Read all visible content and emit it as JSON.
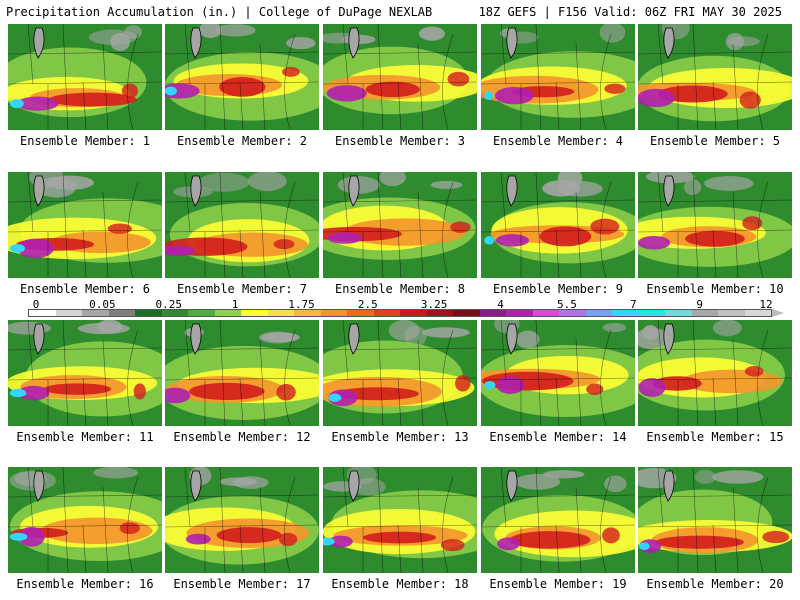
{
  "header": {
    "title_left": "Precipitation Accumulation (in.) | College of DuPage NEXLAB",
    "title_right": "18Z GEFS | F156 Valid: 06Z FRI MAY 30 2025"
  },
  "panel_label_prefix": "Ensemble Member: ",
  "panels": [
    {
      "label": "Ensemble Member: 1"
    },
    {
      "label": "Ensemble Member: 2"
    },
    {
      "label": "Ensemble Member: 3"
    },
    {
      "label": "Ensemble Member: 4"
    },
    {
      "label": "Ensemble Member: 5"
    },
    {
      "label": "Ensemble Member: 6"
    },
    {
      "label": "Ensemble Member: 7"
    },
    {
      "label": "Ensemble Member: 8"
    },
    {
      "label": "Ensemble Member: 9"
    },
    {
      "label": "Ensemble Member: 10"
    },
    {
      "label": "Ensemble Member: 11"
    },
    {
      "label": "Ensemble Member: 12"
    },
    {
      "label": "Ensemble Member: 13"
    },
    {
      "label": "Ensemble Member: 14"
    },
    {
      "label": "Ensemble Member: 15"
    },
    {
      "label": "Ensemble Member: 16"
    },
    {
      "label": "Ensemble Member: 17"
    },
    {
      "label": "Ensemble Member: 18"
    },
    {
      "label": "Ensemble Member: 19"
    },
    {
      "label": "Ensemble Member: 20"
    }
  ],
  "colorbar": {
    "tick_labels": [
      "0",
      "0.05",
      "0.25",
      "1",
      "1.75",
      "2.5",
      "3.25",
      "4",
      "5.5",
      "7",
      "9",
      "12"
    ],
    "colors": [
      "#ffffff",
      "#d4d4d4",
      "#a6a6a6",
      "#7f7f7f",
      "#1b6f24",
      "#2e8b2e",
      "#4caf3c",
      "#8fd14a",
      "#ffff33",
      "#f5e04a",
      "#f6b73c",
      "#f4952c",
      "#ea6b1e",
      "#e0401a",
      "#c8181a",
      "#a2121a",
      "#7a0d1a",
      "#8c1a8c",
      "#b01fb0",
      "#d64ad6",
      "#b070f0",
      "#7aa0ff",
      "#33d6ff",
      "#27e6e6",
      "#6fdcdc",
      "#a8a8a8",
      "#c0c0c0",
      "#d8d8d8"
    ]
  },
  "legend_colors": {
    "background_green": "#2e8b2e",
    "light_green": "#8fd14a",
    "yellow": "#ffff33",
    "orange": "#f4952c",
    "red": "#d31d1d",
    "magenta": "#b01fb0",
    "cyan": "#33d6ff",
    "gray": "#a6a6a6"
  }
}
